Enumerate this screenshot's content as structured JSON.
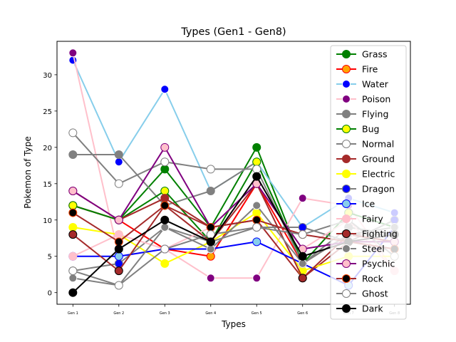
{
  "chart_data": {
    "type": "line",
    "title": "Types (Gen1 - Gen8)",
    "xlabel": "Types",
    "ylabel": "Pokemon of Type",
    "categories": [
      "Gen 1",
      "Gen 2",
      "Gen 3",
      "Gen 4",
      "Gen 5",
      "Gen 6",
      "Gen 7",
      "Gen 8"
    ],
    "y_ticks": [
      0,
      5,
      10,
      15,
      20,
      25,
      30
    ],
    "ylim": [
      -1.6,
      34.6
    ],
    "legend_position": "upper-right",
    "grid": false,
    "series": [
      {
        "name": "Grass",
        "line": "#008000",
        "face": "#008000",
        "edge": "#008000",
        "values": [
          12,
          10,
          17,
          9,
          20,
          4,
          8,
          8
        ]
      },
      {
        "name": "Fire",
        "line": "#ff0000",
        "face": "#ffa500",
        "edge": "#ff0000",
        "values": [
          12,
          10,
          6,
          5,
          15,
          4,
          8,
          7
        ]
      },
      {
        "name": "Water",
        "line": "#87ceeb",
        "face": "#0000ff",
        "edge": "#ffffff",
        "values": [
          32,
          18,
          28,
          14,
          18,
          9,
          13,
          11
        ]
      },
      {
        "name": "Poison",
        "line": "#ffc0cb",
        "face": "#800080",
        "edge": "#ffffff",
        "values": [
          33,
          5,
          6,
          2,
          2,
          13,
          12,
          3
        ]
      },
      {
        "name": "Flying",
        "line": "#808080",
        "face": "#808080",
        "edge": "#808080",
        "values": [
          19,
          19,
          12,
          14,
          18,
          4,
          9,
          8
        ]
      },
      {
        "name": "Bug",
        "line": "#008000",
        "face": "#ffff00",
        "edge": "#008000",
        "values": [
          12,
          10,
          14,
          7,
          18,
          4,
          11,
          9
        ]
      },
      {
        "name": "Normal",
        "line": "#808080",
        "face": "#ffffff",
        "edge": "#808080",
        "values": [
          22,
          15,
          18,
          17,
          17,
          4,
          8,
          8
        ]
      },
      {
        "name": "Ground",
        "line": "#a52a2a",
        "face": "#a52a2a",
        "edge": "#a52a2a",
        "values": [
          14,
          10,
          13,
          9,
          10,
          2,
          7,
          7
        ]
      },
      {
        "name": "Electric",
        "line": "#ffff00",
        "face": "#ffff00",
        "edge": "#ffff00",
        "values": [
          9,
          8,
          4,
          7,
          11,
          3,
          5,
          5
        ]
      },
      {
        "name": "Dragon",
        "line": "#808080",
        "face": "#0000ff",
        "edge": "#808080",
        "values": [
          3,
          4,
          9,
          7,
          9,
          9,
          7,
          10
        ]
      },
      {
        "name": "Ice",
        "line": "#0000ff",
        "face": "#87ceeb",
        "edge": "#0000ff",
        "values": [
          5,
          5,
          6,
          6,
          7,
          4,
          1,
          9
        ]
      },
      {
        "name": "Fairy",
        "line": "#ffc0cb",
        "face": "#ffc0cb",
        "edge": "#ffc0cb",
        "values": [
          5,
          8,
          6,
          9,
          15,
          6,
          10,
          3
        ]
      },
      {
        "name": "Fighting",
        "line": "#a52a2a",
        "face": "#a52a2a",
        "edge": "#000000",
        "values": [
          8,
          3,
          12,
          7,
          15,
          2,
          8,
          7
        ]
      },
      {
        "name": "Steel",
        "line": "#808080",
        "face": "#808080",
        "edge": "#ffffff",
        "values": [
          2,
          1,
          9,
          6,
          12,
          4,
          8,
          9
        ]
      },
      {
        "name": "Psychic",
        "line": "#800080",
        "face": "#ffc0cb",
        "edge": "#800080",
        "values": [
          14,
          10,
          20,
          9,
          15,
          6,
          7,
          7
        ]
      },
      {
        "name": "Rock",
        "line": "#a52a2a",
        "face": "#000000",
        "edge": "#ff4500",
        "values": [
          11,
          7,
          12,
          9,
          10,
          8,
          7,
          6
        ]
      },
      {
        "name": "Ghost",
        "line": "#808080",
        "face": "#ffffff",
        "edge": "#808080",
        "values": [
          3,
          1,
          6,
          8,
          9,
          8,
          10,
          5
        ]
      },
      {
        "name": "Dark",
        "line": "#000000",
        "face": "#000000",
        "edge": "#000000",
        "values": [
          0,
          6,
          10,
          7,
          16,
          5,
          7,
          8
        ]
      }
    ]
  }
}
